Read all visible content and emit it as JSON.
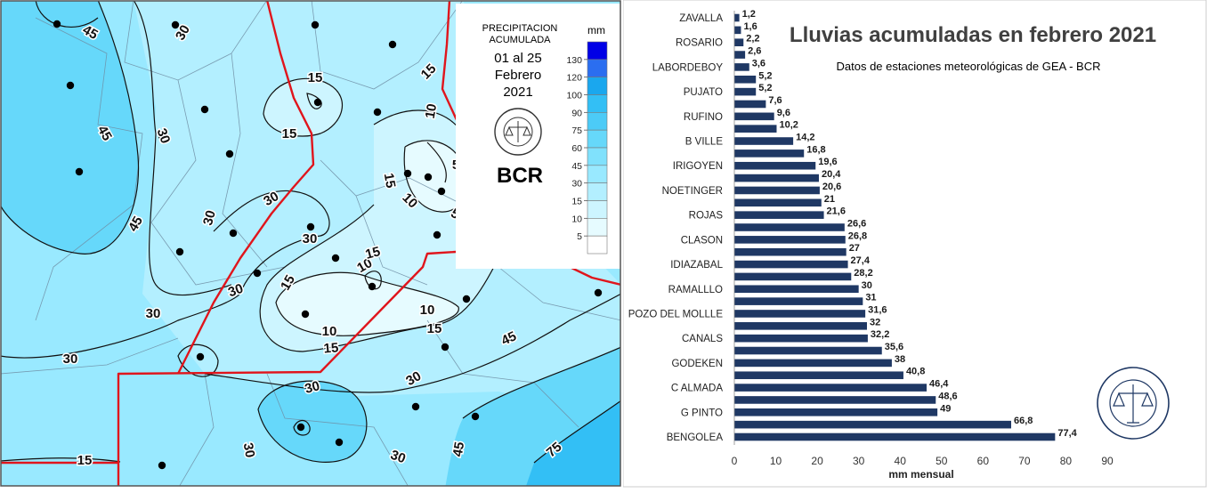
{
  "colors": {
    "bar": "#1f3864",
    "contour": "#111111",
    "boundary": "#e0151c",
    "scale": [
      "#ffffff",
      "#e6fbff",
      "#cdf5ff",
      "#b3efff",
      "#99e9ff",
      "#80e1fc",
      "#66d8fa",
      "#4ccbf7",
      "#33bff5",
      "#1aa7ee",
      "#2b6ef0",
      "#0000e6"
    ]
  },
  "map": {
    "legend": {
      "title_line1": "PRECIPITACION",
      "title_line2": "ACUMULADA",
      "period_line1": "01 al 25",
      "period_line2": "Febrero",
      "period_line3": "2021",
      "unit": "mm",
      "ticks": [
        "130",
        "120",
        "100",
        "90",
        "75",
        "60",
        "45",
        "30",
        "15",
        "10",
        "5"
      ]
    },
    "brand": "BCR",
    "contour_labels": [
      {
        "text": "45",
        "angle": 30
      },
      {
        "text": "30",
        "angle": -60
      },
      {
        "text": "45",
        "angle": 60
      },
      {
        "text": "30",
        "angle": 70
      },
      {
        "text": "45",
        "angle": -60
      },
      {
        "text": "15",
        "angle": 0
      },
      {
        "text": "15",
        "angle": 0
      },
      {
        "text": "15",
        "angle": -45
      },
      {
        "text": "10",
        "angle": -80
      },
      {
        "text": "5",
        "angle": 0
      },
      {
        "text": "30",
        "angle": -75
      },
      {
        "text": "30",
        "angle": -30
      },
      {
        "text": "15",
        "angle": 80
      },
      {
        "text": "10",
        "angle": 45
      },
      {
        "text": "5",
        "angle": 30
      },
      {
        "text": "30",
        "angle": 0
      },
      {
        "text": "10",
        "angle": -30
      },
      {
        "text": "15",
        "angle": -15
      },
      {
        "text": "15",
        "angle": -60
      },
      {
        "text": "10",
        "angle": 0
      },
      {
        "text": "15",
        "angle": 0
      },
      {
        "text": "10",
        "angle": 0
      },
      {
        "text": "15",
        "angle": -5
      },
      {
        "text": "30",
        "angle": -20
      },
      {
        "text": "30",
        "angle": 0
      },
      {
        "text": "30",
        "angle": 0
      },
      {
        "text": "30",
        "angle": -15
      },
      {
        "text": "30",
        "angle": -30
      },
      {
        "text": "45",
        "angle": -25
      },
      {
        "text": "30",
        "angle": 80
      },
      {
        "text": "30",
        "angle": 20
      },
      {
        "text": "45",
        "angle": -80
      },
      {
        "text": "75",
        "angle": -40
      },
      {
        "text": "15",
        "angle": 0
      }
    ]
  },
  "chart_data": {
    "type": "bar",
    "orientation": "horizontal",
    "title": "Lluvias acumuladas en febrero 2021",
    "subtitle": "Datos de estaciones meteorológicas de GEA - BCR",
    "xlabel": "mm mensual",
    "xlim": [
      0,
      90
    ],
    "xticks": [
      "0",
      "10",
      "20",
      "30",
      "40",
      "50",
      "60",
      "70",
      "80",
      "90"
    ],
    "categories": [
      "ZAVALLA",
      "",
      "ROSARIO",
      "",
      "LABORDEBOY",
      "",
      "PUJATO",
      "",
      "RUFINO",
      "",
      "B VILLE",
      "",
      "IRIGOYEN",
      "",
      "NOETINGER",
      "",
      "ROJAS",
      "",
      "CLASON",
      "",
      "IDIAZABAL",
      "",
      "RAMALLLO",
      "",
      "POZO DEL MOLLLE",
      "",
      "CANALS",
      "",
      "GODEKEN",
      "",
      "C ALMADA",
      "",
      "G PINTO",
      "",
      "BENGOLEA"
    ],
    "values": [
      1.2,
      1.6,
      2.2,
      2.6,
      3.6,
      5.2,
      5.2,
      7.6,
      9.6,
      10.2,
      14.2,
      16.8,
      19.6,
      20.4,
      20.6,
      21,
      21.6,
      26.6,
      26.8,
      27,
      27.4,
      28.2,
      30,
      31,
      31.6,
      32,
      32.2,
      35.6,
      38,
      40.8,
      46.4,
      48.6,
      49,
      66.8,
      77.4
    ],
    "value_labels": [
      "1,2",
      "1,6",
      "2,2",
      "2,6",
      "3,6",
      "5,2",
      "5,2",
      "7,6",
      "9,6",
      "10,2",
      "14,2",
      "16,8",
      "19,6",
      "20,4",
      "20,6",
      "21",
      "21,6",
      "26,6",
      "26,8",
      "27",
      "27,4",
      "28,2",
      "30",
      "31",
      "31,6",
      "32",
      "32,2",
      "35,6",
      "38",
      "40,8",
      "46,4",
      "48,6",
      "49",
      "66,8",
      "77,4"
    ],
    "grid": false,
    "legend": "none"
  }
}
